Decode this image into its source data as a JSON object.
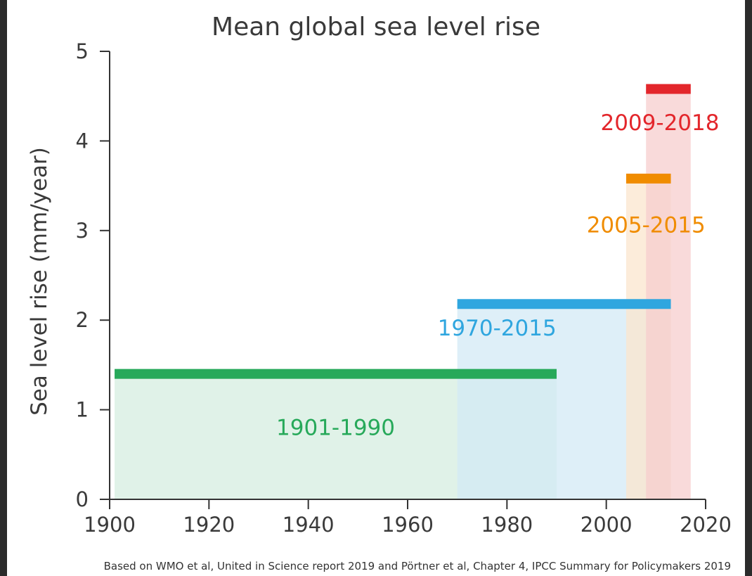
{
  "chart_data": {
    "type": "bar",
    "title": "Mean global sea level rise",
    "ylabel": "Sea level rise (mm/year)",
    "xlabel": "",
    "xlim": [
      1900,
      2020
    ],
    "ylim": [
      0,
      5
    ],
    "x_ticks": [
      1900,
      1920,
      1940,
      1960,
      1980,
      2000,
      2020
    ],
    "y_ticks": [
      0,
      1,
      2,
      3,
      4,
      5
    ],
    "grid": false,
    "series": [
      {
        "name": "1901-1990",
        "x_start": 1901,
        "x_end": 1990,
        "value": 1.4,
        "color": "#27a95a",
        "fill": "#d5ede0"
      },
      {
        "name": "1970-2015",
        "x_start": 1970,
        "x_end": 2013,
        "value": 2.18,
        "color": "#2fa6df",
        "fill": "#d3e9f6"
      },
      {
        "name": "2005-2015",
        "x_start": 2004,
        "x_end": 2013,
        "value": 3.58,
        "color": "#f08c00",
        "fill": "#fbe6cd"
      },
      {
        "name": "2009-2018",
        "x_start": 2008,
        "x_end": 2017,
        "value": 4.58,
        "color": "#e3262b",
        "fill": "#f7cdce"
      }
    ],
    "source": "Based on WMO et al, United in Science report 2019 and Pörtner et al, Chapter 4, IPCC Summary for Policymakers 2019"
  }
}
